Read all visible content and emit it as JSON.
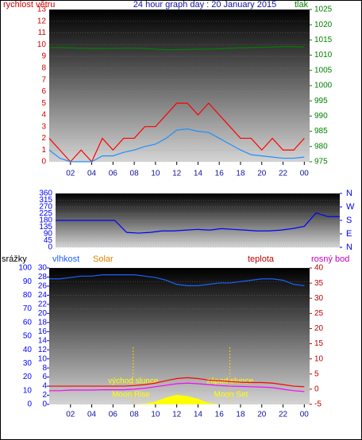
{
  "chart_data": [
    {
      "type": "line",
      "title": "24 hour graph day : 20 January 2015",
      "x": [
        0,
        1,
        2,
        3,
        4,
        5,
        6,
        7,
        8,
        9,
        10,
        11,
        12,
        13,
        14,
        15,
        16,
        17,
        18,
        19,
        20,
        21,
        22,
        23,
        24
      ],
      "xlim": [
        0,
        24.5
      ],
      "xticks": [
        {
          "value": 2,
          "label": "02"
        },
        {
          "value": 4,
          "label": "04"
        },
        {
          "value": 6,
          "label": "06"
        },
        {
          "value": 8,
          "label": "08"
        },
        10,
        12,
        14,
        16,
        18,
        20,
        22,
        {
          "value": 24,
          "label": "00"
        }
      ],
      "ylim": [
        0,
        13
      ],
      "yticks": [
        0,
        1,
        2,
        3,
        4,
        5,
        6,
        7,
        8,
        9,
        10,
        11,
        12,
        13
      ],
      "y2lim": [
        975,
        1025
      ],
      "y2ticks": [
        975,
        980,
        985,
        990,
        995,
        1000,
        1005,
        1010,
        1015,
        1020,
        1025
      ],
      "grid": true,
      "series": [
        {
          "name": "rychlost větru",
          "color": "#ff0000",
          "values": [
            2,
            1,
            0,
            1,
            0,
            2,
            1,
            2,
            2,
            3,
            3,
            4,
            5,
            5,
            4,
            5,
            4,
            3,
            2,
            2,
            1,
            2,
            1,
            1,
            2
          ]
        },
        {
          "color": "#1e90ff",
          "values": [
            1,
            0.3,
            0,
            0,
            0,
            0.5,
            0.5,
            0.8,
            1,
            1.3,
            1.5,
            2,
            2.7,
            2.8,
            2.6,
            2.5,
            2,
            1.5,
            1,
            0.6,
            0.5,
            0.4,
            0.3,
            0.3,
            0.4
          ]
        },
        {
          "name": "tlak",
          "color": "#008000",
          "axis": "y2",
          "values": [
            1012.5,
            1012.5,
            1012.4,
            1012.3,
            1012.2,
            1012.2,
            1012.2,
            1012.3,
            1012.3,
            1012.2,
            1012,
            1011.8,
            1011.8,
            1011.9,
            1012,
            1012,
            1012.1,
            1012.3,
            1012.4,
            1012.5,
            1012.6,
            1012.7,
            1012.8,
            1012.8,
            1012.7
          ]
        }
      ]
    },
    {
      "type": "line",
      "x": [
        0,
        1,
        2,
        3,
        4,
        5,
        6,
        7,
        8,
        9,
        10,
        11,
        12,
        13,
        14,
        15,
        16,
        17,
        18,
        19,
        20,
        21,
        22,
        23,
        24
      ],
      "xlim": [
        0,
        24
      ],
      "ylim": [
        0,
        360
      ],
      "yticks": [
        0,
        45,
        90,
        135,
        180,
        225,
        270,
        315,
        360
      ],
      "y2lim": [
        0,
        360
      ],
      "y2ticks": [
        {
          "value": 360,
          "label": "N"
        },
        {
          "value": 270,
          "label": "W"
        },
        {
          "value": 180,
          "label": "S"
        },
        {
          "value": 90,
          "label": "E"
        },
        {
          "value": 0,
          "label": "N"
        }
      ],
      "grid": true,
      "series": [
        {
          "color": "#0000ff",
          "values": [
            180,
            180,
            180,
            180,
            180,
            180,
            100,
            95,
            100,
            110,
            110,
            115,
            120,
            115,
            125,
            120,
            115,
            110,
            110,
            115,
            125,
            140,
            230,
            205,
            205
          ]
        }
      ]
    },
    {
      "type": "line",
      "x": [
        0,
        1,
        2,
        3,
        4,
        5,
        6,
        7,
        8,
        9,
        10,
        11,
        12,
        13,
        14,
        15,
        16,
        17,
        18,
        19,
        20,
        21,
        22,
        23,
        24
      ],
      "xlim": [
        0,
        24.5
      ],
      "xticks": [
        {
          "value": 2,
          "label": "02"
        },
        {
          "value": 4,
          "label": "04"
        },
        {
          "value": 6,
          "label": "06"
        },
        {
          "value": 8,
          "label": "08"
        },
        10,
        12,
        14,
        16,
        18,
        20,
        22,
        {
          "value": 24,
          "label": "00"
        }
      ],
      "ylim": [
        0,
        100
      ],
      "yticks": [
        0,
        10,
        20,
        30,
        40,
        50,
        60,
        70,
        80,
        90,
        100
      ],
      "y3_label": "srážky",
      "y3lim": [
        0,
        30
      ],
      "y3ticks": [
        0,
        2,
        4,
        6,
        8,
        10,
        12,
        14,
        16,
        18,
        20,
        22,
        24,
        26,
        28,
        30
      ],
      "y2lim": [
        -5,
        40
      ],
      "y2ticks": [
        -5,
        0,
        5,
        10,
        15,
        20,
        25,
        30,
        35,
        40
      ],
      "grid": true,
      "series": [
        {
          "name": "vlhkost",
          "color": "#1e60ff",
          "values": [
            92,
            92,
            93,
            94,
            94,
            95,
            95,
            95,
            95,
            94,
            93,
            91,
            88,
            87,
            87,
            88,
            89,
            89,
            90,
            91,
            92,
            92,
            91,
            88,
            87
          ]
        },
        {
          "name": "teplota",
          "color": "#ff0000",
          "axis": "y2",
          "values": [
            1,
            1,
            1,
            1,
            1,
            1,
            1,
            1,
            1.2,
            1.5,
            2,
            2.8,
            3.5,
            3.8,
            3.5,
            3,
            2.8,
            2.5,
            2.3,
            2.2,
            2.2,
            2,
            1.5,
            1,
            0.8
          ]
        },
        {
          "name": "rosný bod",
          "color": "#ff00ff",
          "axis": "y2",
          "values": [
            -0.5,
            -0.5,
            -0.3,
            -0.3,
            -0.3,
            -0.2,
            -0.2,
            -0.2,
            0,
            0.3,
            0.8,
            1.3,
            1.8,
            2,
            1.8,
            1.5,
            1.2,
            1,
            0.9,
            0.8,
            0.7,
            0.5,
            0,
            -0.5,
            -0.8
          ]
        },
        {
          "name": "Solar",
          "color": "#ffff00",
          "kind": "area",
          "values": [
            0,
            0,
            0,
            0,
            0,
            0,
            0,
            0,
            0,
            0.5,
            2,
            5,
            7,
            6,
            4,
            1,
            0,
            0,
            0,
            0,
            0,
            0,
            0,
            0,
            0
          ]
        }
      ],
      "sun_events": [
        {
          "text": "východ slunce",
          "x": 7.9
        },
        {
          "text": "západ slunce",
          "x": 17
        }
      ],
      "moon_events": [
        {
          "text": "Moon Rise",
          "x": 7.7
        },
        {
          "text": "Moon Set",
          "x": 17.1
        }
      ]
    }
  ]
}
